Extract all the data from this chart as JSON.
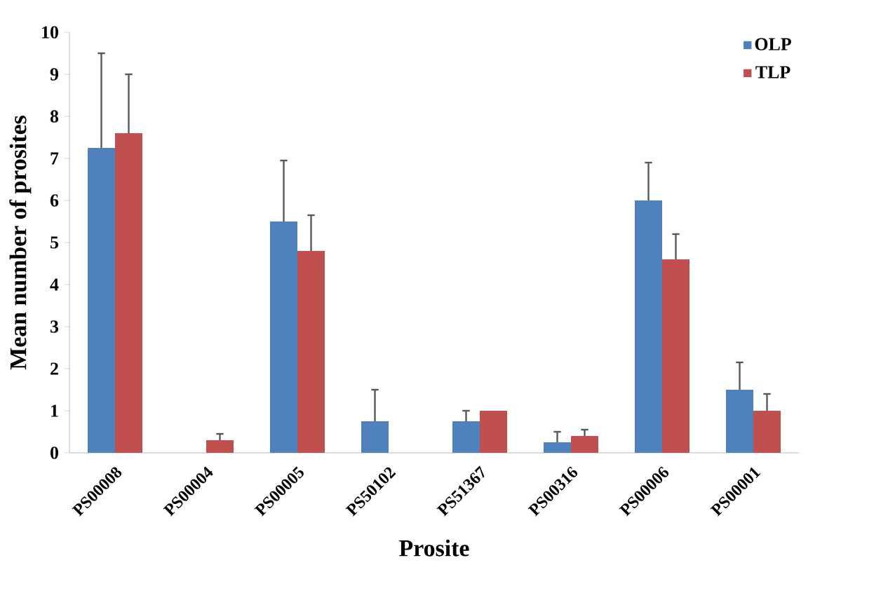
{
  "chart_data": {
    "type": "bar",
    "xlabel": "Prosite",
    "ylabel": "Mean number of prosites",
    "categories": [
      "PS00008",
      "PS00004",
      "PS00005",
      "PS50102",
      "PS51367",
      "PS00316",
      "PS00006",
      "PS00001"
    ],
    "series": [
      {
        "name": "OLP",
        "color": "#4f81bd",
        "values": [
          7.25,
          null,
          5.5,
          0.75,
          0.75,
          0.25,
          6.0,
          1.5
        ],
        "errors": [
          [
            7.25,
            9.5
          ],
          null,
          [
            5.5,
            6.95
          ],
          [
            0.75,
            1.5
          ],
          [
            0.75,
            1.0
          ],
          [
            0.25,
            0.5
          ],
          [
            6.0,
            6.9
          ],
          [
            1.5,
            2.15
          ]
        ]
      },
      {
        "name": "TLP",
        "color": "#c0504d",
        "values": [
          7.6,
          0.3,
          4.8,
          null,
          1.0,
          0.4,
          4.6,
          1.0
        ],
        "errors": [
          [
            7.6,
            9.0
          ],
          [
            0.3,
            0.45
          ],
          [
            4.8,
            5.65
          ],
          null,
          null,
          [
            0.4,
            0.55
          ],
          [
            4.6,
            5.2
          ],
          [
            1.0,
            1.4
          ]
        ]
      }
    ],
    "ylim": [
      0,
      10
    ],
    "yticks": [
      0,
      1,
      2,
      3,
      4,
      5,
      6,
      7,
      8,
      9,
      10
    ],
    "grid": false,
    "legend": "top right"
  }
}
